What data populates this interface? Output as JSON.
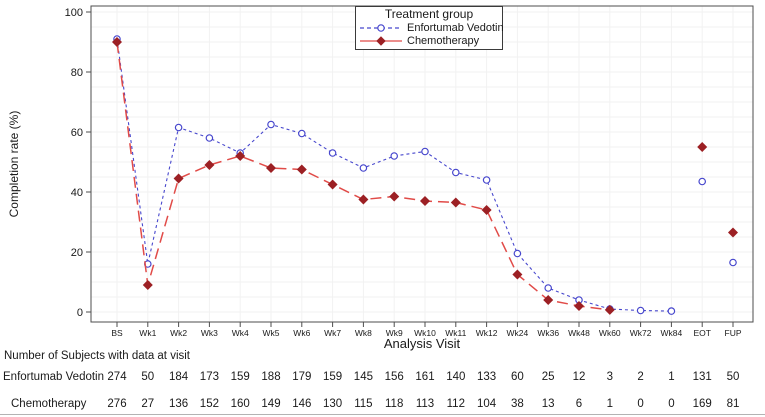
{
  "chart_data": {
    "type": "line",
    "title": "",
    "legend_title": "Treatment group",
    "legend_position": "top-center-inside",
    "xlabel": "Analysis Visit",
    "ylabel": "Completion rate (%)",
    "ylim": [
      0,
      100
    ],
    "yticks": [
      0,
      20,
      40,
      60,
      80,
      100
    ],
    "grid": true,
    "categories": [
      "BS",
      "Wk1",
      "Wk2",
      "Wk3",
      "Wk4",
      "Wk5",
      "Wk6",
      "Wk7",
      "Wk8",
      "Wk9",
      "Wk10",
      "Wk11",
      "Wk12",
      "Wk24",
      "Wk36",
      "Wk48",
      "Wk60",
      "Wk72",
      "Wk84",
      "EOT",
      "FUP"
    ],
    "isolated_from_index": 19,
    "series": [
      {
        "name": "Enfortumab Vedotin",
        "line_color": "#4747cd",
        "marker_color": "#4747cd",
        "marker": "open-circle",
        "line_style": "dotted",
        "values": [
          91,
          16,
          61.5,
          58,
          53,
          62.5,
          59.5,
          53,
          48,
          52,
          53.5,
          46.5,
          44,
          19.5,
          8,
          4,
          1,
          0.5,
          0.3,
          43.5,
          16.5
        ]
      },
      {
        "name": "Chemotherapy",
        "line_color": "#e14b48",
        "marker_color": "#9c2024",
        "marker": "filled-diamond",
        "line_style": "long-dash",
        "values": [
          90,
          9,
          44.5,
          49,
          52,
          48,
          47.5,
          42.5,
          37.5,
          38.5,
          37,
          36.5,
          34,
          12.5,
          4,
          2,
          0.7,
          null,
          null,
          55,
          26.5
        ]
      }
    ]
  },
  "table": {
    "title": "Number of Subjects with data at visit",
    "rows": [
      {
        "label": "Enfortumab Vedotin",
        "values": [
          274,
          50,
          184,
          173,
          159,
          188,
          179,
          159,
          145,
          156,
          161,
          140,
          133,
          60,
          25,
          12,
          3,
          2,
          1,
          131,
          50
        ]
      },
      {
        "label": "Chemotherapy",
        "values": [
          276,
          27,
          136,
          152,
          160,
          149,
          146,
          130,
          115,
          118,
          113,
          112,
          104,
          38,
          13,
          6,
          1,
          0,
          0,
          169,
          81
        ]
      }
    ]
  }
}
